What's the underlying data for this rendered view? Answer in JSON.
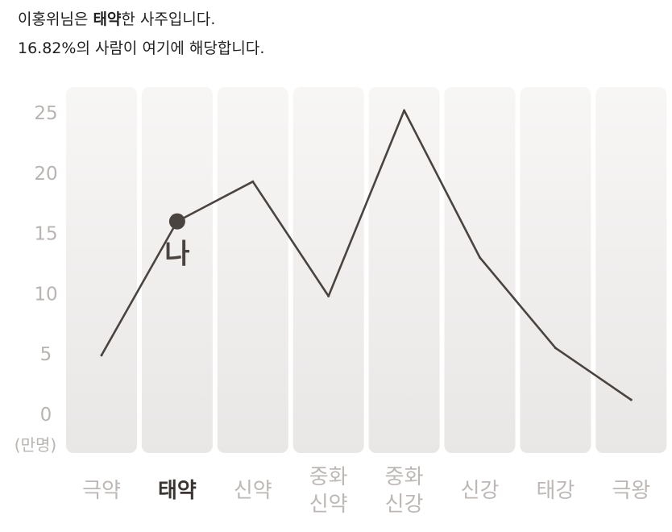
{
  "summary": {
    "line1_prefix": "이홍위님은 ",
    "line1_bold": "태약",
    "line1_suffix": "한 사주입니다.",
    "line2": "16.82%의 사람이 여기에 해당합니다."
  },
  "chart_data": {
    "type": "line",
    "categories": [
      [
        "극약"
      ],
      [
        "태약"
      ],
      [
        "신약"
      ],
      [
        "중화",
        "신약"
      ],
      [
        "중화",
        "신강"
      ],
      [
        "신강"
      ],
      [
        "태강"
      ],
      [
        "극왕"
      ]
    ],
    "values": [
      4.9,
      16.0,
      19.3,
      9.8,
      25.2,
      13.0,
      5.5,
      1.2
    ],
    "y_ticks": [
      0,
      5,
      10,
      15,
      20,
      25
    ],
    "ylabel": "(만명)",
    "ylim": [
      0,
      25
    ],
    "highlight_index": 1,
    "marker_label": "나",
    "grid": false,
    "colors": {
      "line": "#4a4441",
      "marker": "#4a4441",
      "tick": "#b9b4b1",
      "category": "#bdb8b5",
      "category_active": "#3a3533",
      "column_top": "#f7f6f5",
      "column_bottom": "#e9e7e6"
    }
  }
}
